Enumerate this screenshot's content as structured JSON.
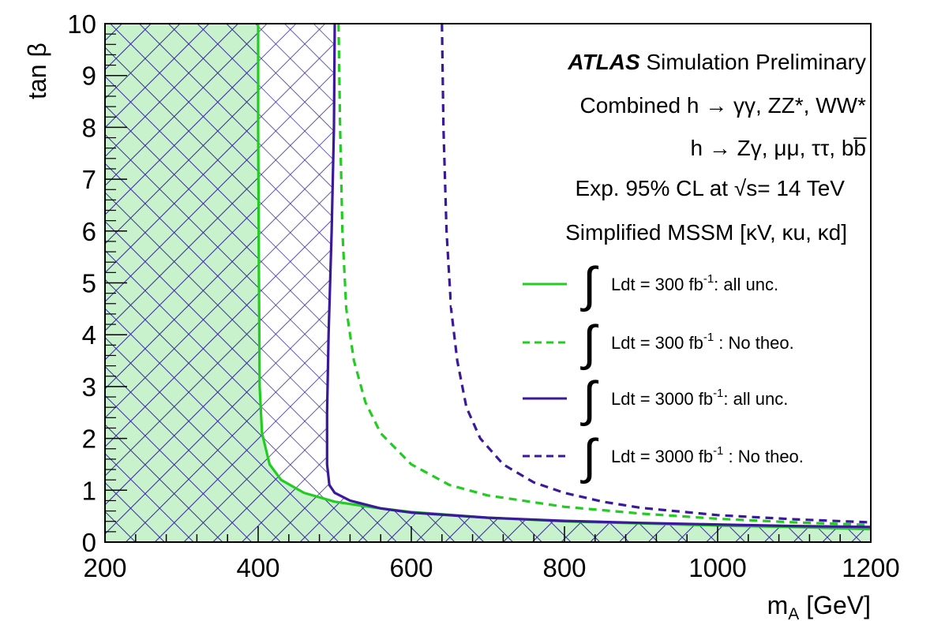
{
  "chart_data": {
    "type": "line",
    "header": {
      "experiment": "ATLAS",
      "status": "Simulation Preliminary",
      "lines": [
        "Combined h → γγ, ZZ*, WW*",
        "h → Zγ, μμ, ττ, bb̅",
        "Exp. 95% CL at √s= 14 TeV",
        "Simplified MSSM [κV, κu, κd]"
      ]
    },
    "xlabel": "m_A [GeV]",
    "ylabel": "tan β",
    "xlim": [
      200,
      1200
    ],
    "ylim": [
      0,
      10
    ],
    "xticks": [
      "200",
      "400",
      "600",
      "800",
      "1000",
      "1200"
    ],
    "yticks": [
      "0",
      "1",
      "2",
      "3",
      "4",
      "5",
      "6",
      "7",
      "8",
      "9",
      "10"
    ],
    "grid": false,
    "legend_position": "right",
    "series": [
      {
        "name": "∫ Ldt = 300 fb⁻¹: all unc.",
        "color": "#22cc22",
        "dash": "solid",
        "fill": "light-green hatched",
        "x": [
          400,
          400,
          401,
          402,
          405,
          415,
          430,
          460,
          500,
          550,
          600,
          700,
          800,
          900,
          1000,
          1100,
          1200
        ],
        "y": [
          10,
          8,
          5,
          3,
          2.1,
          1.5,
          1.2,
          0.95,
          0.78,
          0.67,
          0.58,
          0.47,
          0.4,
          0.36,
          0.32,
          0.29,
          0.25
        ]
      },
      {
        "name": "∫ Ldt = 300 fb⁻¹ : No theo.",
        "color": "#22cc22",
        "dash": "dashed",
        "x": [
          505,
          507,
          510,
          515,
          525,
          540,
          560,
          600,
          650,
          700,
          800,
          900,
          1000,
          1100,
          1200
        ],
        "y": [
          10,
          8,
          6,
          4.5,
          3.5,
          2.7,
          2.1,
          1.5,
          1.1,
          0.9,
          0.68,
          0.55,
          0.45,
          0.38,
          0.33
        ]
      },
      {
        "name": "∫ Ldt = 3000 fb⁻¹: all unc.",
        "color": "#3a1a9a",
        "dash": "solid",
        "fill": "purple cross-hatched",
        "x": [
          500,
          499,
          496,
          492,
          490,
          490,
          493,
          500,
          520,
          560,
          600,
          700,
          800,
          900,
          1000,
          1100,
          1200
        ],
        "y": [
          10,
          8,
          6,
          4,
          2.5,
          1.5,
          1.1,
          0.95,
          0.8,
          0.65,
          0.57,
          0.47,
          0.41,
          0.37,
          0.34,
          0.31,
          0.29
        ]
      },
      {
        "name": "∫ Ldt = 3000 fb⁻¹ : No theo.",
        "color": "#3a1a9a",
        "dash": "dashed",
        "x": [
          640,
          642,
          646,
          652,
          660,
          672,
          690,
          720,
          760,
          800,
          850,
          900,
          1000,
          1100,
          1200
        ],
        "y": [
          10,
          8,
          6,
          4.5,
          3.5,
          2.6,
          2.0,
          1.5,
          1.15,
          0.95,
          0.78,
          0.66,
          0.52,
          0.44,
          0.38
        ]
      }
    ]
  }
}
